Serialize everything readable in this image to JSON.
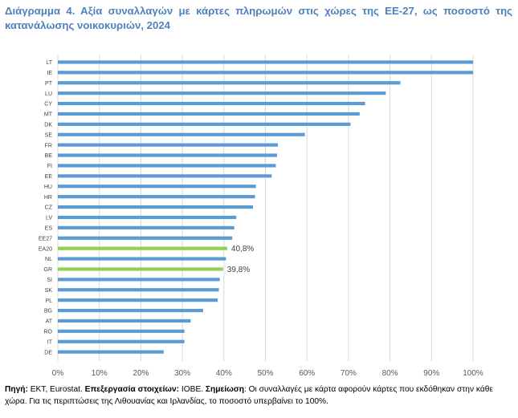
{
  "title": "Διάγραμμα 4. Αξία συναλλαγών με κάρτες πληρωμών στις χώρες της ΕΕ-27, ως ποσοστό της κατανάλωσης νοικοκυριών, 2024",
  "footer": {
    "source_label": "Πηγή:",
    "source_text": " ΕΚΤ, Eurostat. ",
    "processing_label": "Επεξεργασία στοιχείων:",
    "processing_text": " ΙΟΒΕ. ",
    "note_label": "Σημείωση",
    "note_text": ": Οι συναλλαγές με κάρτα αφορούν κάρτες που εκδόθηκαν στην κάθε χώρα. Για τις περιπτώσεις της Λιθουανίας και Ιρλανδίας, το ποσοστό υπερβαίνει το 100%."
  },
  "colors": {
    "bar": "#5b9bd5",
    "highlight": "#92d050",
    "grid": "#d9d9d9",
    "title": "#4f81bd"
  },
  "chart_data": {
    "type": "bar",
    "orientation": "horizontal",
    "categories": [
      "LT",
      "IE",
      "PT",
      "LU",
      "CY",
      "MT",
      "DK",
      "SE",
      "FR",
      "BE",
      "FI",
      "EE",
      "HU",
      "HR",
      "CZ",
      "LV",
      "ES",
      "EE27",
      "EA20",
      "NL",
      "GR",
      "SI",
      "SK",
      "PL",
      "BG",
      "AT",
      "RO",
      "IT",
      "DE"
    ],
    "values": [
      100,
      100,
      82.5,
      79,
      74,
      72.7,
      70.5,
      59.5,
      53,
      52.8,
      52.5,
      51.5,
      47.7,
      47.5,
      47,
      43,
      42.5,
      42,
      40.8,
      40.5,
      39.8,
      39,
      38.8,
      38.5,
      35,
      32,
      30.5,
      30.5,
      25.5
    ],
    "highlight": [
      "EA20",
      "GR"
    ],
    "data_labels": {
      "EA20": "40,8%",
      "GR": "39,8%"
    },
    "xlim": [
      0,
      100
    ],
    "xticks": [
      "0%",
      "10%",
      "20%",
      "30%",
      "40%",
      "50%",
      "60%",
      "70%",
      "80%",
      "90%",
      "100%"
    ],
    "grid": true,
    "legend": "none"
  }
}
